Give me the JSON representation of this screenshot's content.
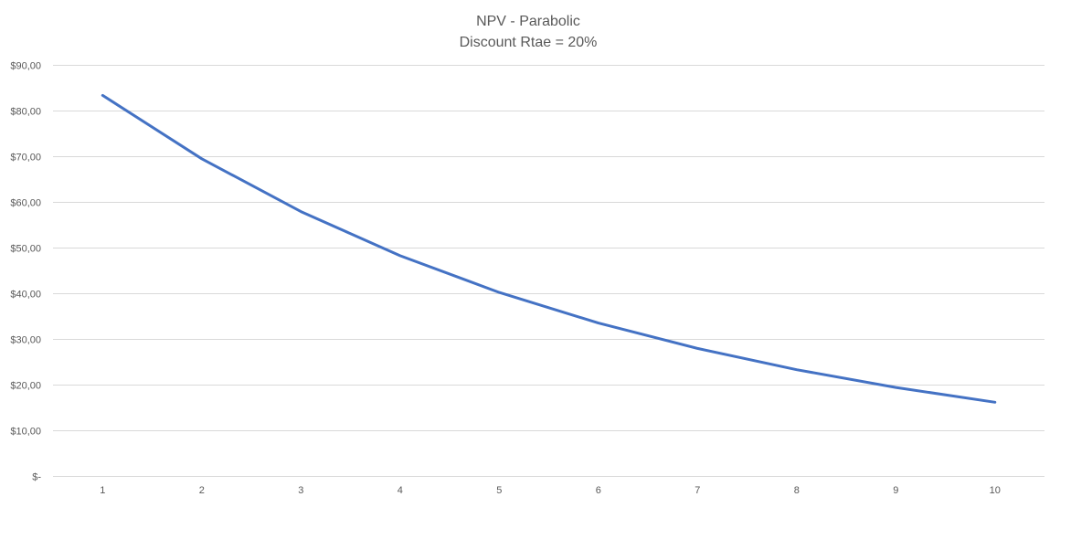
{
  "chart_data": {
    "type": "line",
    "title": "NPV - Parabolic",
    "subtitle": "Discount Rtae = 20%",
    "xlabel": "",
    "ylabel": "",
    "x": [
      1,
      2,
      3,
      4,
      5,
      6,
      7,
      8,
      9,
      10
    ],
    "categories": [
      "1",
      "2",
      "3",
      "4",
      "5",
      "6",
      "7",
      "8",
      "9",
      "10"
    ],
    "series": [
      {
        "values": [
          83.33,
          69.44,
          57.87,
          48.23,
          40.19,
          33.49,
          27.91,
          23.26,
          19.38,
          16.15
        ],
        "color": "#4472c4"
      }
    ],
    "ylim": [
      0,
      90
    ],
    "y_ticks": [
      0,
      10,
      20,
      30,
      40,
      50,
      60,
      70,
      80,
      90
    ],
    "y_tick_labels": [
      "$-",
      "$10,00",
      "$20,00",
      "$30,00",
      "$40,00",
      "$50,00",
      "$60,00",
      "$70,00",
      "$80,00",
      "$90,00"
    ],
    "grid": true,
    "legend": "none"
  }
}
